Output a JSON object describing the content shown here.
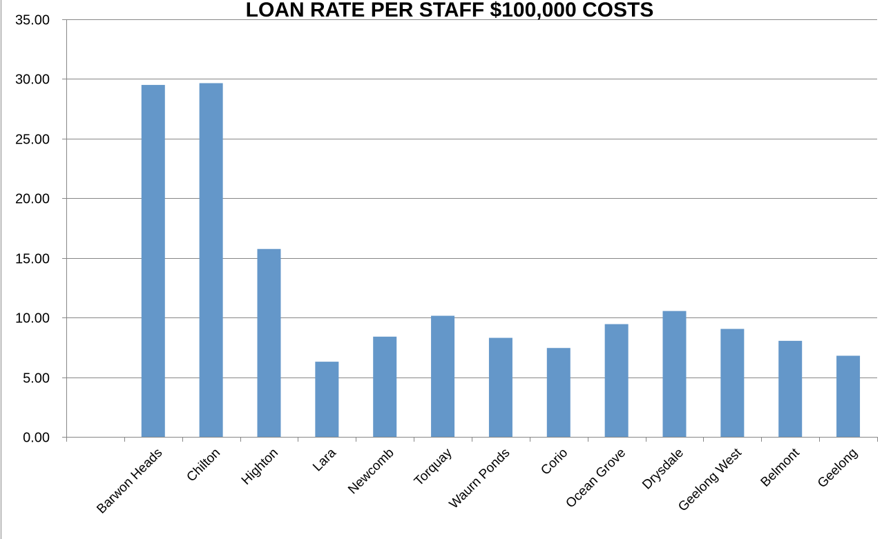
{
  "chart_data": {
    "type": "bar",
    "title": "LOAN RATE PER STAFF $100,000 COSTS",
    "xlabel": "",
    "ylabel": "",
    "categories": [
      "",
      "Barwon Heads",
      "Chilton",
      "Highton",
      "Lara",
      "Newcomb",
      "Torquay",
      "Waurn Ponds",
      "Corio",
      "Ocean Grove",
      "Drysdale",
      "Geelong West",
      "Belmont",
      "Geelong"
    ],
    "values": [
      null,
      29.5,
      29.65,
      15.75,
      6.3,
      8.4,
      10.15,
      8.3,
      7.45,
      9.45,
      10.55,
      9.05,
      8.05,
      6.8
    ],
    "ylim": [
      0,
      35
    ],
    "yticks": [
      "0.00",
      "5.00",
      "10.00",
      "15.00",
      "20.00",
      "25.00",
      "30.00",
      "35.00"
    ],
    "grid": true,
    "legend": "none",
    "bar_color": "#6497C9",
    "grid_color": "#868686"
  }
}
